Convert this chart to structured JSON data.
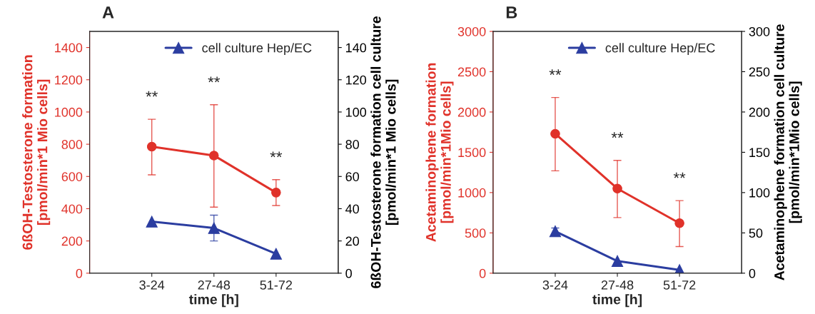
{
  "chart_data": [
    {
      "type": "line",
      "title": "A",
      "xlabel": "time [h]",
      "ylabel": "6ßOH-Testosterone formation\n[pmol/min*1 Mio cells]",
      "y2label": "6ßOH-Testosterone formation cell culture\n[pmol/min*1 Mio cells]",
      "categories": [
        null,
        "3-24",
        "27-48",
        "51-72",
        null
      ],
      "series": [
        {
          "color": "#e0322a",
          "marker": "circle",
          "values": [
            null,
            785,
            730,
            500,
            null
          ],
          "errors": [
            null,
            [
              610,
              955
            ],
            [
              410,
              1045
            ],
            [
              420,
              580
            ],
            null
          ]
        },
        {
          "name": "cell culture Hep/EC",
          "color": "#2b3da0",
          "marker": "triangle",
          "axis": "y2",
          "values": [
            null,
            32,
            28,
            12,
            null
          ],
          "errors": [
            null,
            null,
            [
              20,
              36
            ],
            null,
            null
          ]
        }
      ],
      "ylim": [
        0,
        1500
      ],
      "yticks": [
        0,
        200,
        400,
        600,
        800,
        1000,
        1200,
        1400
      ],
      "y2lim": [
        0,
        150
      ],
      "y2ticks": [
        0,
        20,
        40,
        60,
        80,
        100,
        120,
        140
      ],
      "legend": "top",
      "grid": false,
      "annotations": [
        "**",
        "**",
        "**"
      ]
    },
    {
      "type": "line",
      "title": "B",
      "xlabel": "time [h]",
      "ylabel": "Acetaminophene formation\n[pmol/min*1Mio cells]",
      "y2label": "Acetaminophene formation cell culture\n[pmol/min*1Mio cells]",
      "categories": [
        null,
        "3-24",
        "27-48",
        "51-72",
        null
      ],
      "series": [
        {
          "color": "#e0322a",
          "marker": "circle",
          "values": [
            null,
            1730,
            1050,
            620,
            null
          ],
          "errors": [
            null,
            [
              1270,
              2180
            ],
            [
              690,
              1400
            ],
            [
              330,
              900
            ],
            null
          ]
        },
        {
          "name": "cell culture Hep/EC",
          "color": "#2b3da0",
          "marker": "triangle",
          "axis": "y2",
          "values": [
            null,
            52,
            15,
            4,
            null
          ],
          "errors": [
            null,
            [
              47,
              56
            ],
            null,
            null,
            null
          ]
        }
      ],
      "ylim": [
        0,
        3000
      ],
      "yticks": [
        0,
        500,
        1000,
        1500,
        2000,
        2500,
        3000
      ],
      "y2lim": [
        0,
        300
      ],
      "y2ticks": [
        0,
        50,
        100,
        150,
        200,
        250,
        300
      ],
      "legend": "top",
      "grid": false,
      "annotations": [
        "**",
        "**",
        "**"
      ]
    }
  ]
}
